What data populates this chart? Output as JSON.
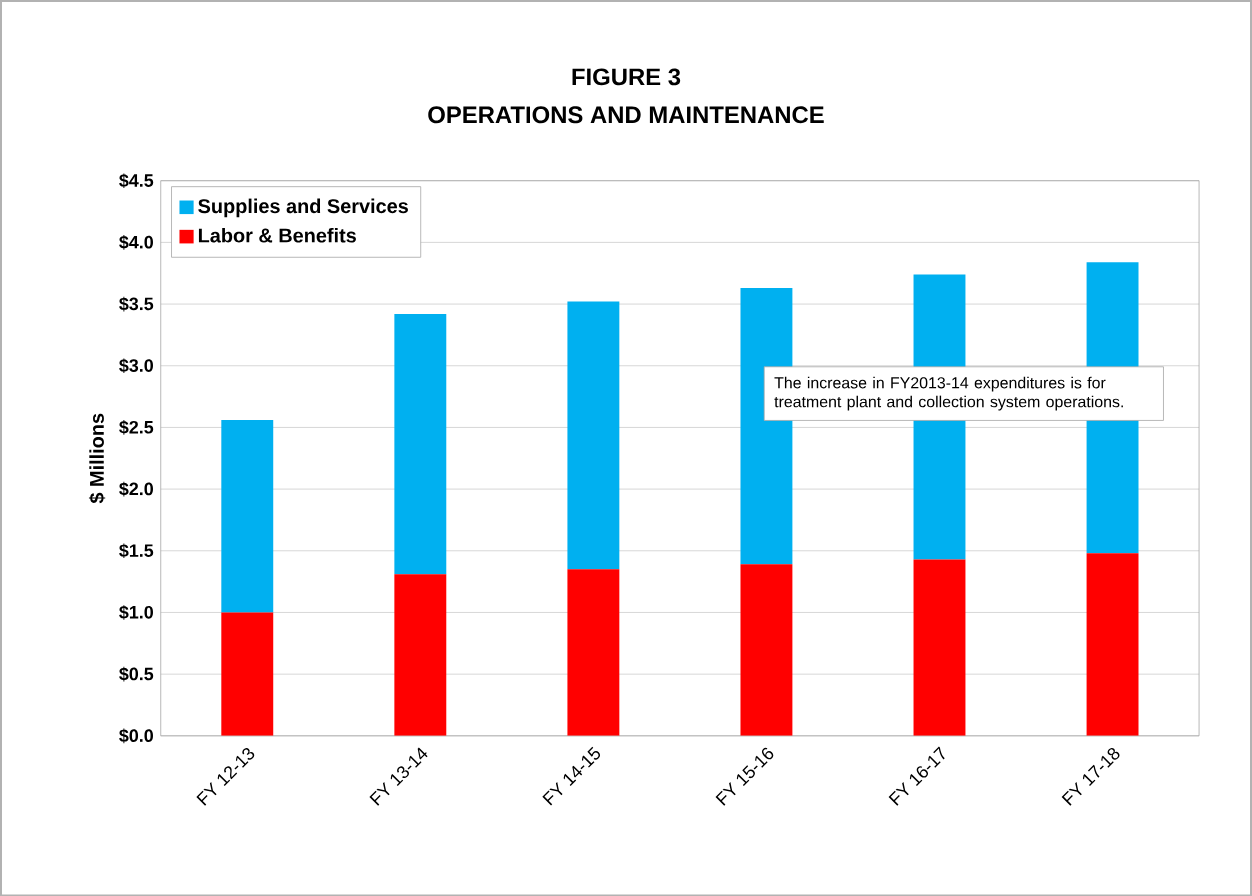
{
  "chart_data": {
    "type": "bar",
    "title": "FIGURE 3",
    "subtitle": "OPERATIONS AND MAINTENANCE",
    "ylabel": "$ Millions",
    "categories": [
      "FY 12-13",
      "FY 13-14",
      "FY 14-15",
      "FY 15-16",
      "FY 16-17",
      "FY 17-18"
    ],
    "stacked": true,
    "series": [
      {
        "name": "Labor & Benefits",
        "color": "#ff0000",
        "values": [
          1.0,
          1.31,
          1.35,
          1.39,
          1.43,
          1.48
        ]
      },
      {
        "name": "Supplies and Services",
        "color": "#00b0f0",
        "values": [
          1.56,
          2.11,
          2.17,
          2.24,
          2.31,
          2.36
        ]
      }
    ],
    "ylim": [
      0,
      4.5
    ],
    "yticks": [
      {
        "value": 0,
        "label": "$0.0"
      },
      {
        "value": 0.5,
        "label": "$0.5"
      },
      {
        "value": 1,
        "label": "$1.0"
      },
      {
        "value": 1.5,
        "label": "$1.5"
      },
      {
        "value": 2,
        "label": "$2.0"
      },
      {
        "value": 2.5,
        "label": "$2.5"
      },
      {
        "value": 3,
        "label": "$3.0"
      },
      {
        "value": 3.5,
        "label": "$3.5"
      },
      {
        "value": 4,
        "label": "$4.0"
      },
      {
        "value": 4.5,
        "label": "$4.5"
      }
    ],
    "grid": "y",
    "legend": "top left",
    "annotations": [
      "The increase in FY2013-14 expenditures is  for treatment plant and collection system operations."
    ]
  }
}
